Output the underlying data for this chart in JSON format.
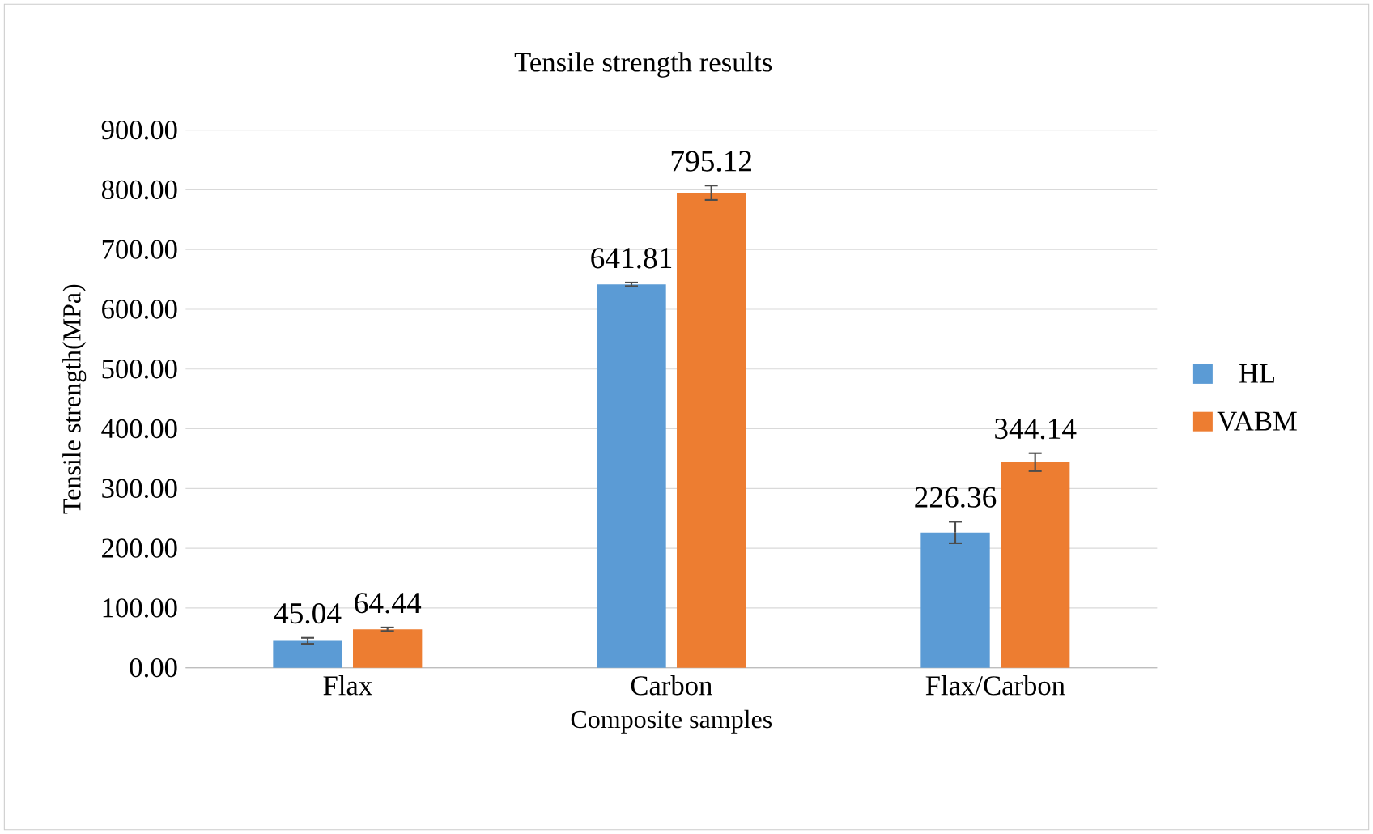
{
  "chart_data": {
    "type": "bar",
    "title": "Tensile strength  results",
    "xlabel": "Composite samples",
    "ylabel": "Tensile strength(MPa)",
    "categories": [
      "Flax",
      "Carbon",
      "Flax/Carbon"
    ],
    "series": [
      {
        "name": "HL",
        "color": "#5b9bd5",
        "values": [
          45.04,
          641.81,
          226.36
        ],
        "errors": [
          5,
          3,
          18
        ],
        "value_labels": [
          "45.04",
          "641.81",
          "226.36"
        ]
      },
      {
        "name": "VABM",
        "color": "#ed7d31",
        "values": [
          64.44,
          795.12,
          344.14
        ],
        "errors": [
          3,
          12,
          15
        ],
        "value_labels": [
          "64.44",
          "795.12",
          "344.14"
        ]
      }
    ],
    "ylim": [
      0,
      900
    ],
    "yticks": [
      {
        "value": 0,
        "label": "0.00"
      },
      {
        "value": 100,
        "label": "100.00"
      },
      {
        "value": 200,
        "label": "200.00"
      },
      {
        "value": 300,
        "label": "300.00"
      },
      {
        "value": 400,
        "label": "400.00"
      },
      {
        "value": 500,
        "label": "500.00"
      },
      {
        "value": 600,
        "label": "600.00"
      },
      {
        "value": 700,
        "label": "700.00"
      },
      {
        "value": 800,
        "label": "800.00"
      },
      {
        "value": 900,
        "label": "900.00"
      }
    ],
    "grid": "y",
    "legend": "right"
  }
}
